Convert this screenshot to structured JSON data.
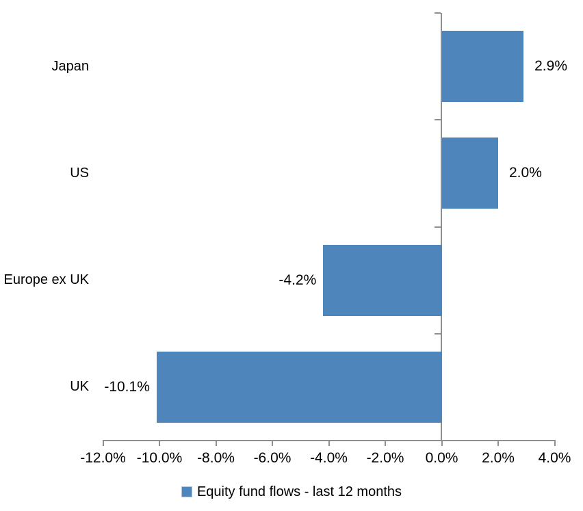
{
  "chart_data": {
    "type": "bar",
    "orientation": "horizontal",
    "title": "",
    "categories": [
      "Japan",
      "US",
      "Europe ex UK",
      "UK"
    ],
    "series": [
      {
        "name": "Equity fund flows - last 12 months",
        "values": [
          2.9,
          2.0,
          -4.2,
          -10.1
        ],
        "value_labels": [
          "2.9%",
          "2.0%",
          "-4.2%",
          "-10.1%"
        ]
      }
    ],
    "x_axis": {
      "min": -12,
      "max": 4,
      "tick_step": 2,
      "ticks": [
        {
          "value": -12,
          "label": "-12.0%"
        },
        {
          "value": -10,
          "label": "-10.0%"
        },
        {
          "value": -8,
          "label": "-8.0%"
        },
        {
          "value": -6,
          "label": "-6.0%"
        },
        {
          "value": -4,
          "label": "-4.0%"
        },
        {
          "value": -2,
          "label": "-2.0%"
        },
        {
          "value": 0,
          "label": "0.0%"
        },
        {
          "value": 2,
          "label": "2.0%"
        },
        {
          "value": 4,
          "label": "4.0%"
        }
      ]
    },
    "grid": false,
    "legend": {
      "position": "bottom-center",
      "entries": [
        "Equity fund flows - last 12 months"
      ]
    },
    "colors": {
      "bar_fill": "#4E86BC",
      "bar_edge": "#A9C6DF",
      "axis_line": "#8F8F8F",
      "text": "#000000",
      "background": "#FFFFFF"
    }
  }
}
